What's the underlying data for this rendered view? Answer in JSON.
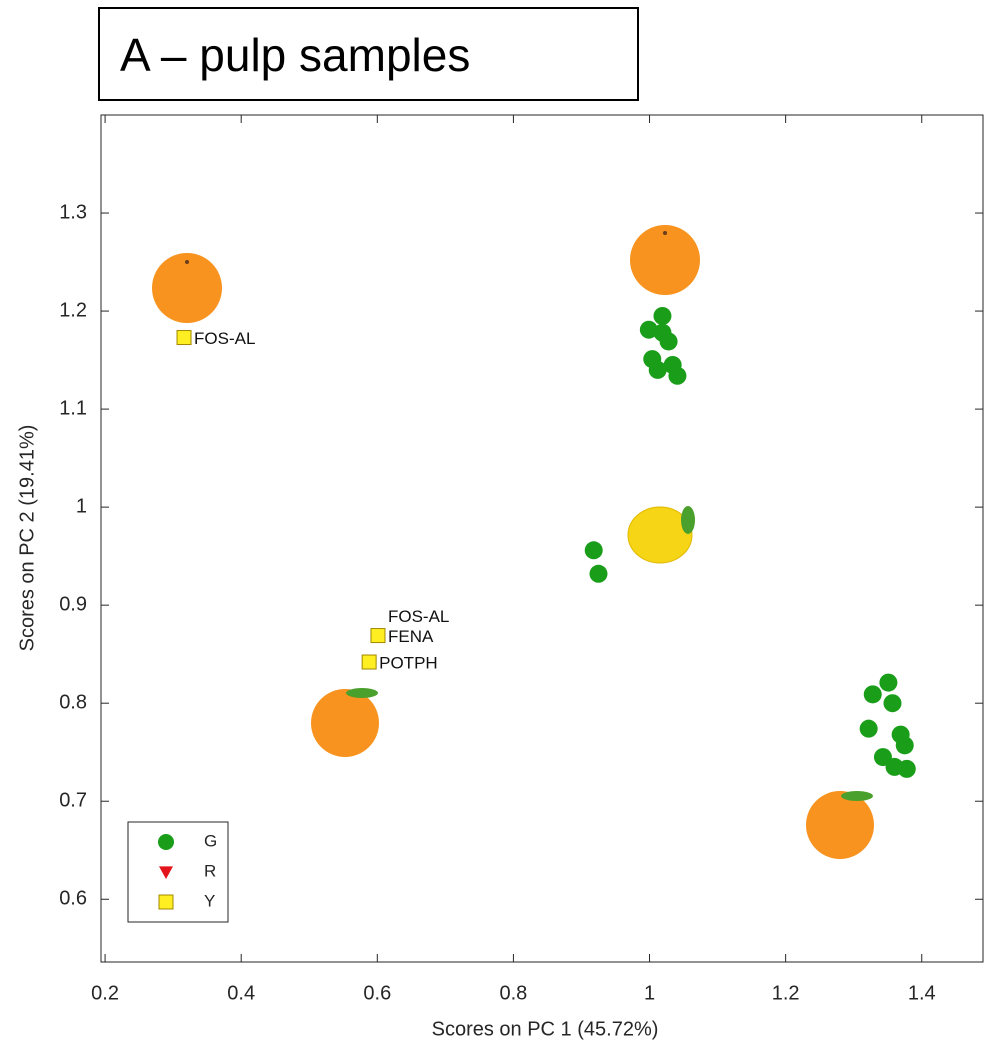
{
  "chart_data": {
    "type": "scatter",
    "title": "A – pulp samples",
    "x_label": "Scores on PC 1 (45.72%)",
    "y_label": "Scores on PC 2 (19.41%)",
    "xlim": [
      0.194,
      1.49
    ],
    "ylim": [
      0.536,
      1.4
    ],
    "xticks": [
      0.2,
      0.4,
      0.6,
      0.8,
      1,
      1.2,
      1.4
    ],
    "yticks": [
      0.6,
      0.7,
      0.8,
      0.9,
      1,
      1.1,
      1.2,
      1.3
    ],
    "legend": "lower left",
    "series": [
      {
        "name": "G",
        "color": "#1a9e1a",
        "marker": "circle",
        "x": [
          1.019,
          0.999,
          1.019,
          1.028,
          1.004,
          1.034,
          1.012,
          1.041,
          0.918,
          0.925,
          1.351,
          1.328,
          1.357,
          1.322,
          1.369,
          1.375,
          1.343,
          1.36,
          1.378
        ],
        "y": [
          1.195,
          1.181,
          1.178,
          1.169,
          1.151,
          1.145,
          1.14,
          1.134,
          0.956,
          0.932,
          0.821,
          0.809,
          0.8,
          0.774,
          0.768,
          0.757,
          0.745,
          0.735,
          0.733
        ]
      },
      {
        "name": "R",
        "color": "#e3141b",
        "marker": "triangle",
        "x": [],
        "y": []
      },
      {
        "name": "Y",
        "color": "#ffee22",
        "marker": "square",
        "x": [
          0.316,
          0.601,
          0.588
        ],
        "y": [
          1.173,
          0.869,
          0.842
        ],
        "point_labels": [
          [
            "FOS-AL"
          ],
          [
            "FOS-AL",
            "FENA"
          ],
          [
            "POTPH"
          ]
        ]
      }
    ]
  }
}
